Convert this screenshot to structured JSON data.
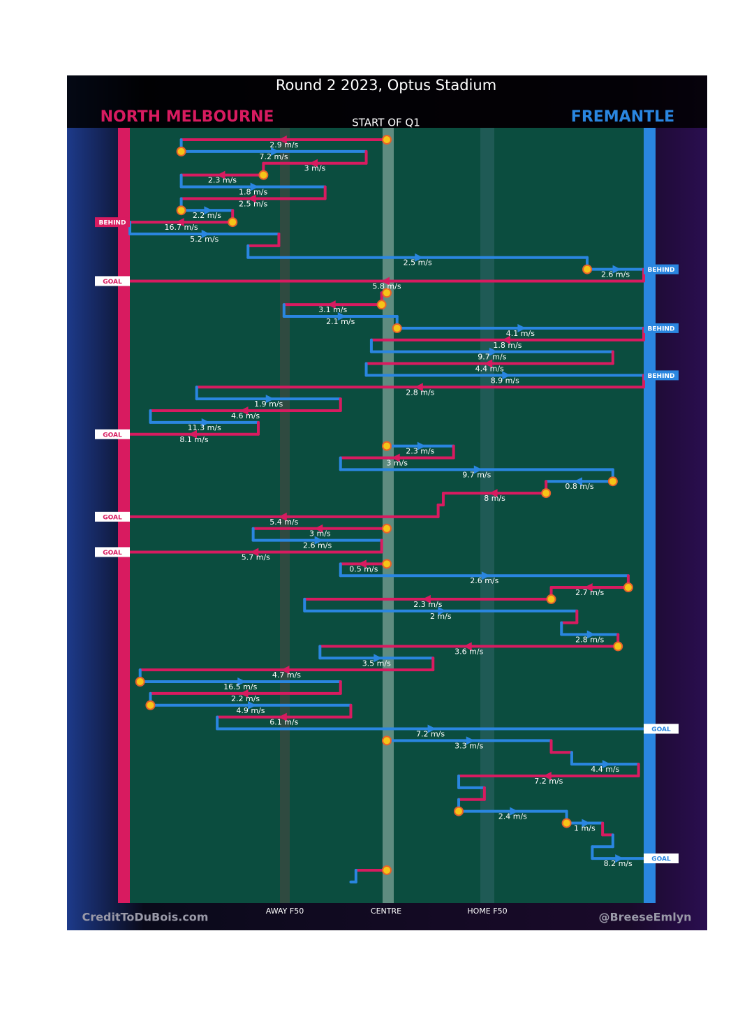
{
  "header": {
    "title": "Round 2 2023, Optus Stadium",
    "subtitle": "START OF Q1"
  },
  "teams": [
    {
      "name": "NORTH MELBOURNE",
      "color": "#d81b60"
    },
    {
      "name": "FREMANTLE",
      "color": "#2a86e0"
    }
  ],
  "field_labels": [
    "AWAY F50",
    "CENTRE",
    "HOME F50"
  ],
  "credits": [
    "CreditToDuBois.com",
    "@BreeseEmlyn"
  ],
  "segments": [
    {
      "side": 0,
      "from": 50,
      "to": 10,
      "speed": "2.9 m/s",
      "marker": true
    },
    {
      "side": 1,
      "from": 10,
      "to": 46,
      "speed": "7.2 m/s",
      "marker": true
    },
    {
      "side": 0,
      "from": 46,
      "to": 26,
      "speed": "3 m/s"
    },
    {
      "side": 0,
      "from": 26,
      "to": 10,
      "speed": "2.3 m/s",
      "marker": true
    },
    {
      "side": 1,
      "from": 10,
      "to": 38,
      "speed": "1.8 m/s"
    },
    {
      "side": 0,
      "from": 38,
      "to": 10,
      "speed": "2.5 m/s"
    },
    {
      "side": 1,
      "from": 10,
      "to": 20,
      "speed": "2.2 m/s",
      "marker": true
    },
    {
      "side": 0,
      "from": 20,
      "to": 0,
      "speed": "16.7 m/s",
      "marker": true,
      "result": "BEHIND"
    },
    {
      "side": 1,
      "from": 0,
      "to": 29,
      "speed": "5.2 m/s"
    },
    {
      "side": 0,
      "from": 29,
      "to": 23
    },
    {
      "side": 1,
      "from": 23,
      "to": 89,
      "speed": "2.5 m/s"
    },
    {
      "side": 1,
      "from": 89,
      "to": 100,
      "speed": "2.6 m/s",
      "marker": true,
      "result": "BEHIND"
    },
    {
      "side": 0,
      "from": 100,
      "to": 0,
      "speed": "5.8 m/s",
      "result": "GOAL"
    },
    {
      "side": 1,
      "from": 50,
      "to": 49,
      "marker": true
    },
    {
      "side": 0,
      "from": 49,
      "to": 30,
      "speed": "3.1 m/s",
      "marker": true
    },
    {
      "side": 1,
      "from": 30,
      "to": 52,
      "speed": "2.1 m/s"
    },
    {
      "side": 1,
      "from": 52,
      "to": 100,
      "speed": "4.1 m/s",
      "marker": true,
      "result": "BEHIND"
    },
    {
      "side": 0,
      "from": 100,
      "to": 47,
      "speed": "1.8 m/s"
    },
    {
      "side": 1,
      "from": 47,
      "to": 94,
      "speed": "9.7 m/s"
    },
    {
      "side": 0,
      "from": 94,
      "to": 46,
      "speed": "4.4 m/s"
    },
    {
      "side": 1,
      "from": 46,
      "to": 100,
      "speed": "8.9 m/s",
      "result": "BEHIND"
    },
    {
      "side": 0,
      "from": 100,
      "to": 13,
      "speed": "2.8 m/s"
    },
    {
      "side": 1,
      "from": 13,
      "to": 41,
      "speed": "1.9 m/s"
    },
    {
      "side": 0,
      "from": 41,
      "to": 4,
      "speed": "4.6 m/s"
    },
    {
      "side": 1,
      "from": 4,
      "to": 25,
      "speed": "11.3 m/s"
    },
    {
      "side": 0,
      "from": 25,
      "to": 0,
      "speed": "8.1 m/s",
      "result": "GOAL"
    },
    {
      "side": 1,
      "from": 50,
      "to": 63,
      "speed": "2.3 m/s",
      "marker": true
    },
    {
      "side": 0,
      "from": 63,
      "to": 41,
      "speed": "3 m/s"
    },
    {
      "side": 1,
      "from": 41,
      "to": 94,
      "speed": "9.7 m/s"
    },
    {
      "side": 1,
      "from": 94,
      "to": 81,
      "speed": "0.8 m/s",
      "marker": true
    },
    {
      "side": 0,
      "from": 81,
      "to": 61,
      "speed": "8 m/s",
      "marker": true
    },
    {
      "side": 0,
      "from": 61,
      "to": 60
    },
    {
      "side": 0,
      "from": 60,
      "to": 0,
      "speed": "5.4 m/s",
      "result": "GOAL"
    },
    {
      "side": 0,
      "from": 50,
      "to": 24,
      "speed": "3 m/s",
      "marker": true
    },
    {
      "side": 1,
      "from": 24,
      "to": 49,
      "speed": "2.6 m/s"
    },
    {
      "side": 0,
      "from": 49,
      "to": 0,
      "speed": "5.7 m/s",
      "result": "GOAL"
    },
    {
      "side": 0,
      "from": 50,
      "to": 41,
      "speed": "0.5 m/s",
      "marker": true
    },
    {
      "side": 1,
      "from": 41,
      "to": 97,
      "speed": "2.6 m/s"
    },
    {
      "side": 0,
      "from": 97,
      "to": 82,
      "speed": "2.7 m/s",
      "marker": true
    },
    {
      "side": 0,
      "from": 82,
      "to": 34,
      "speed": "2.3 m/s",
      "marker": true
    },
    {
      "side": 1,
      "from": 34,
      "to": 87,
      "speed": "2 m/s"
    },
    {
      "side": 0,
      "from": 87,
      "to": 84
    },
    {
      "side": 1,
      "from": 84,
      "to": 95,
      "speed": "2.8 m/s"
    },
    {
      "side": 0,
      "from": 95,
      "to": 37,
      "speed": "3.6 m/s",
      "marker": true
    },
    {
      "side": 1,
      "from": 37,
      "to": 59,
      "speed": "3.5 m/s"
    },
    {
      "side": 0,
      "from": 59,
      "to": 2,
      "speed": "4.7 m/s"
    },
    {
      "side": 1,
      "from": 2,
      "to": 41,
      "speed": "16.5 m/s",
      "marker": true
    },
    {
      "side": 0,
      "from": 41,
      "to": 4,
      "speed": "2.2 m/s"
    },
    {
      "side": 1,
      "from": 4,
      "to": 43,
      "speed": "4.9 m/s",
      "marker": true
    },
    {
      "side": 0,
      "from": 43,
      "to": 17,
      "speed": "6.1 m/s"
    },
    {
      "side": 1,
      "from": 17,
      "to": 100,
      "speed": "7.2 m/s",
      "result": "GOAL"
    },
    {
      "side": 1,
      "from": 50,
      "to": 82,
      "speed": "3.3 m/s",
      "marker": true
    },
    {
      "side": 0,
      "from": 82,
      "to": 86
    },
    {
      "side": 1,
      "from": 86,
      "to": 99,
      "speed": "4.4 m/s"
    },
    {
      "side": 0,
      "from": 99,
      "to": 64,
      "speed": "7.2 m/s"
    },
    {
      "side": 1,
      "from": 64,
      "to": 69
    },
    {
      "side": 0,
      "from": 69,
      "to": 64
    },
    {
      "side": 1,
      "from": 64,
      "to": 85,
      "speed": "2.4 m/s",
      "marker": true
    },
    {
      "side": 1,
      "from": 85,
      "to": 92,
      "speed": "1 m/s",
      "marker": true
    },
    {
      "side": 0,
      "from": 92,
      "to": 94
    },
    {
      "side": 1,
      "from": 94,
      "to": 90
    },
    {
      "side": 1,
      "from": 90,
      "to": 100,
      "speed": "8.2 m/s",
      "result": "GOAL"
    },
    {
      "side": 0,
      "from": 50,
      "to": 44,
      "marker": true
    },
    {
      "side": 1,
      "from": 44,
      "to": 43
    }
  ]
}
